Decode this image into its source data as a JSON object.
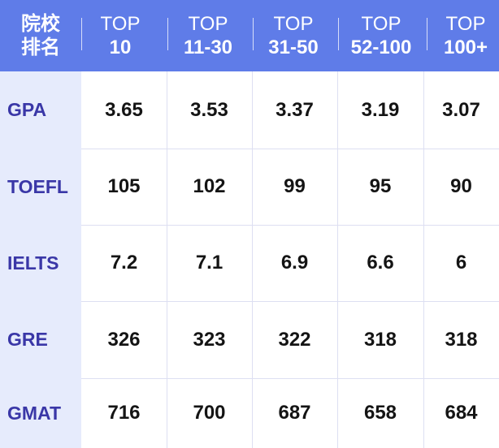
{
  "header": {
    "corner": [
      "院校",
      "排名"
    ],
    "columns": [
      {
        "line1": "TOP",
        "line2": "10"
      },
      {
        "line1": "TOP",
        "line2": "11-30"
      },
      {
        "line1": "TOP",
        "line2": "31-50"
      },
      {
        "line1": "TOP",
        "line2": "52-100"
      },
      {
        "line1": "TOP",
        "line2": "100+"
      }
    ]
  },
  "rows": [
    {
      "label": "GPA",
      "values": [
        "3.65",
        "3.53",
        "3.37",
        "3.19",
        "3.07"
      ]
    },
    {
      "label": "TOEFL",
      "values": [
        "105",
        "102",
        "99",
        "95",
        "90"
      ]
    },
    {
      "label": "IELTS",
      "values": [
        "7.2",
        "7.1",
        "6.9",
        "6.6",
        "6"
      ]
    },
    {
      "label": "GRE",
      "values": [
        "326",
        "323",
        "322",
        "318",
        "318"
      ]
    },
    {
      "label": "GMAT",
      "values": [
        "716",
        "700",
        "687",
        "658",
        "684"
      ]
    }
  ],
  "colors": {
    "header_bg": "#5f7ce8",
    "label_bg": "#e6ebfc",
    "label_text": "#3a37a7",
    "value_text": "#141414",
    "grid": "#dddff2"
  }
}
